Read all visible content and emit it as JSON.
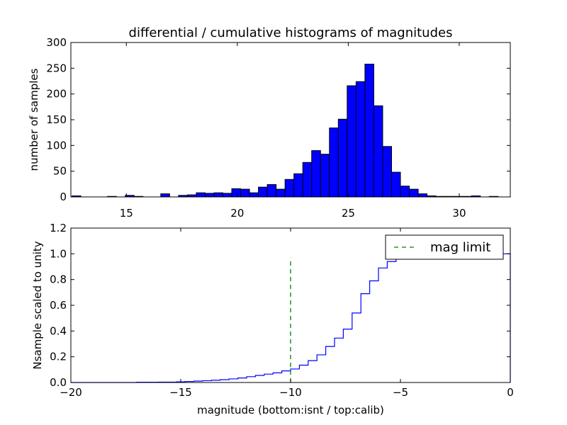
{
  "chart_data": [
    {
      "type": "bar",
      "title": "differential / cumulative histograms of magnitudes",
      "xlabel": "",
      "ylabel": "number of samples",
      "xlim": [
        12.5,
        32.3
      ],
      "ylim": [
        0,
        300
      ],
      "xticks": [
        15,
        20,
        25,
        30
      ],
      "yticks": [
        0,
        50,
        100,
        150,
        200,
        250,
        300
      ],
      "bar_color": "#0000ff",
      "bins": [
        {
          "x0": 12.55,
          "x1": 12.95,
          "value": 2
        },
        {
          "x0": 14.15,
          "x1": 14.55,
          "value": 1
        },
        {
          "x0": 14.95,
          "x1": 15.35,
          "value": 3
        },
        {
          "x0": 15.35,
          "x1": 15.75,
          "value": 1
        },
        {
          "x0": 16.55,
          "x1": 16.95,
          "value": 6
        },
        {
          "x0": 17.35,
          "x1": 17.75,
          "value": 3
        },
        {
          "x0": 17.75,
          "x1": 18.15,
          "value": 4
        },
        {
          "x0": 18.15,
          "x1": 18.55,
          "value": 8
        },
        {
          "x0": 18.55,
          "x1": 18.95,
          "value": 7
        },
        {
          "x0": 18.95,
          "x1": 19.35,
          "value": 8
        },
        {
          "x0": 19.35,
          "x1": 19.75,
          "value": 7
        },
        {
          "x0": 19.75,
          "x1": 20.15,
          "value": 16
        },
        {
          "x0": 20.15,
          "x1": 20.55,
          "value": 15
        },
        {
          "x0": 20.55,
          "x1": 20.95,
          "value": 8
        },
        {
          "x0": 20.95,
          "x1": 21.35,
          "value": 19
        },
        {
          "x0": 21.35,
          "x1": 21.75,
          "value": 24
        },
        {
          "x0": 21.75,
          "x1": 22.15,
          "value": 15
        },
        {
          "x0": 22.15,
          "x1": 22.55,
          "value": 34
        },
        {
          "x0": 22.55,
          "x1": 22.95,
          "value": 45
        },
        {
          "x0": 22.95,
          "x1": 23.35,
          "value": 67
        },
        {
          "x0": 23.35,
          "x1": 23.75,
          "value": 90
        },
        {
          "x0": 23.75,
          "x1": 24.15,
          "value": 83
        },
        {
          "x0": 24.15,
          "x1": 24.55,
          "value": 134
        },
        {
          "x0": 24.55,
          "x1": 24.95,
          "value": 151
        },
        {
          "x0": 24.95,
          "x1": 25.35,
          "value": 216
        },
        {
          "x0": 25.35,
          "x1": 25.75,
          "value": 224
        },
        {
          "x0": 25.75,
          "x1": 26.15,
          "value": 258
        },
        {
          "x0": 26.15,
          "x1": 26.55,
          "value": 177
        },
        {
          "x0": 26.55,
          "x1": 26.95,
          "value": 98
        },
        {
          "x0": 26.95,
          "x1": 27.35,
          "value": 48
        },
        {
          "x0": 27.35,
          "x1": 27.75,
          "value": 21
        },
        {
          "x0": 27.75,
          "x1": 28.15,
          "value": 15
        },
        {
          "x0": 28.15,
          "x1": 28.55,
          "value": 6
        },
        {
          "x0": 28.55,
          "x1": 28.95,
          "value": 2
        },
        {
          "x0": 28.95,
          "x1": 29.35,
          "value": 1
        },
        {
          "x0": 29.35,
          "x1": 29.75,
          "value": 1
        },
        {
          "x0": 29.75,
          "x1": 30.15,
          "value": 1
        },
        {
          "x0": 30.15,
          "x1": 30.55,
          "value": 1
        },
        {
          "x0": 30.55,
          "x1": 30.95,
          "value": 2
        },
        {
          "x0": 31.35,
          "x1": 31.75,
          "value": 1
        }
      ]
    },
    {
      "type": "line",
      "title": "",
      "xlabel": "magnitude (bottom:isnt / top:calib)",
      "ylabel": "Nsample scaled to unity",
      "xlim": [
        -20,
        0
      ],
      "ylim": [
        0,
        1.2
      ],
      "xticks": [
        -20,
        -15,
        -10,
        -5,
        0
      ],
      "yticks": [
        0.0,
        0.2,
        0.4,
        0.6,
        0.8,
        1.0,
        1.2
      ],
      "legend": {
        "placement": "top-right",
        "entries": [
          "mag limit"
        ]
      },
      "series": [
        {
          "style": "step",
          "color": "#0000ff",
          "x": [
            -20,
            -17,
            -16,
            -15.2,
            -14.8,
            -14.4,
            -14.0,
            -13.6,
            -13.2,
            -12.8,
            -12.4,
            -12.0,
            -11.6,
            -11.2,
            -10.8,
            -10.4,
            -10.0,
            -9.6,
            -9.2,
            -8.8,
            -8.4,
            -8.0,
            -7.6,
            -7.2,
            -6.8,
            -6.4,
            -6.0,
            -5.6,
            -5.2,
            -4.8,
            -4.0,
            -3.2,
            -2.4,
            -1.6,
            -0.8,
            -0.05
          ],
          "y": [
            0.0,
            0.002,
            0.003,
            0.005,
            0.008,
            0.011,
            0.014,
            0.018,
            0.022,
            0.028,
            0.035,
            0.045,
            0.055,
            0.065,
            0.075,
            0.09,
            0.105,
            0.135,
            0.17,
            0.215,
            0.28,
            0.345,
            0.415,
            0.54,
            0.69,
            0.79,
            0.89,
            0.94,
            0.98,
            0.99,
            0.995,
            0.998,
            0.999,
            1.0,
            1.0,
            1.0
          ]
        },
        {
          "name": "mag limit",
          "style": "dashed",
          "color": "#008000",
          "x": [
            -10,
            -10
          ],
          "y": [
            0,
            0.97
          ]
        }
      ]
    }
  ]
}
